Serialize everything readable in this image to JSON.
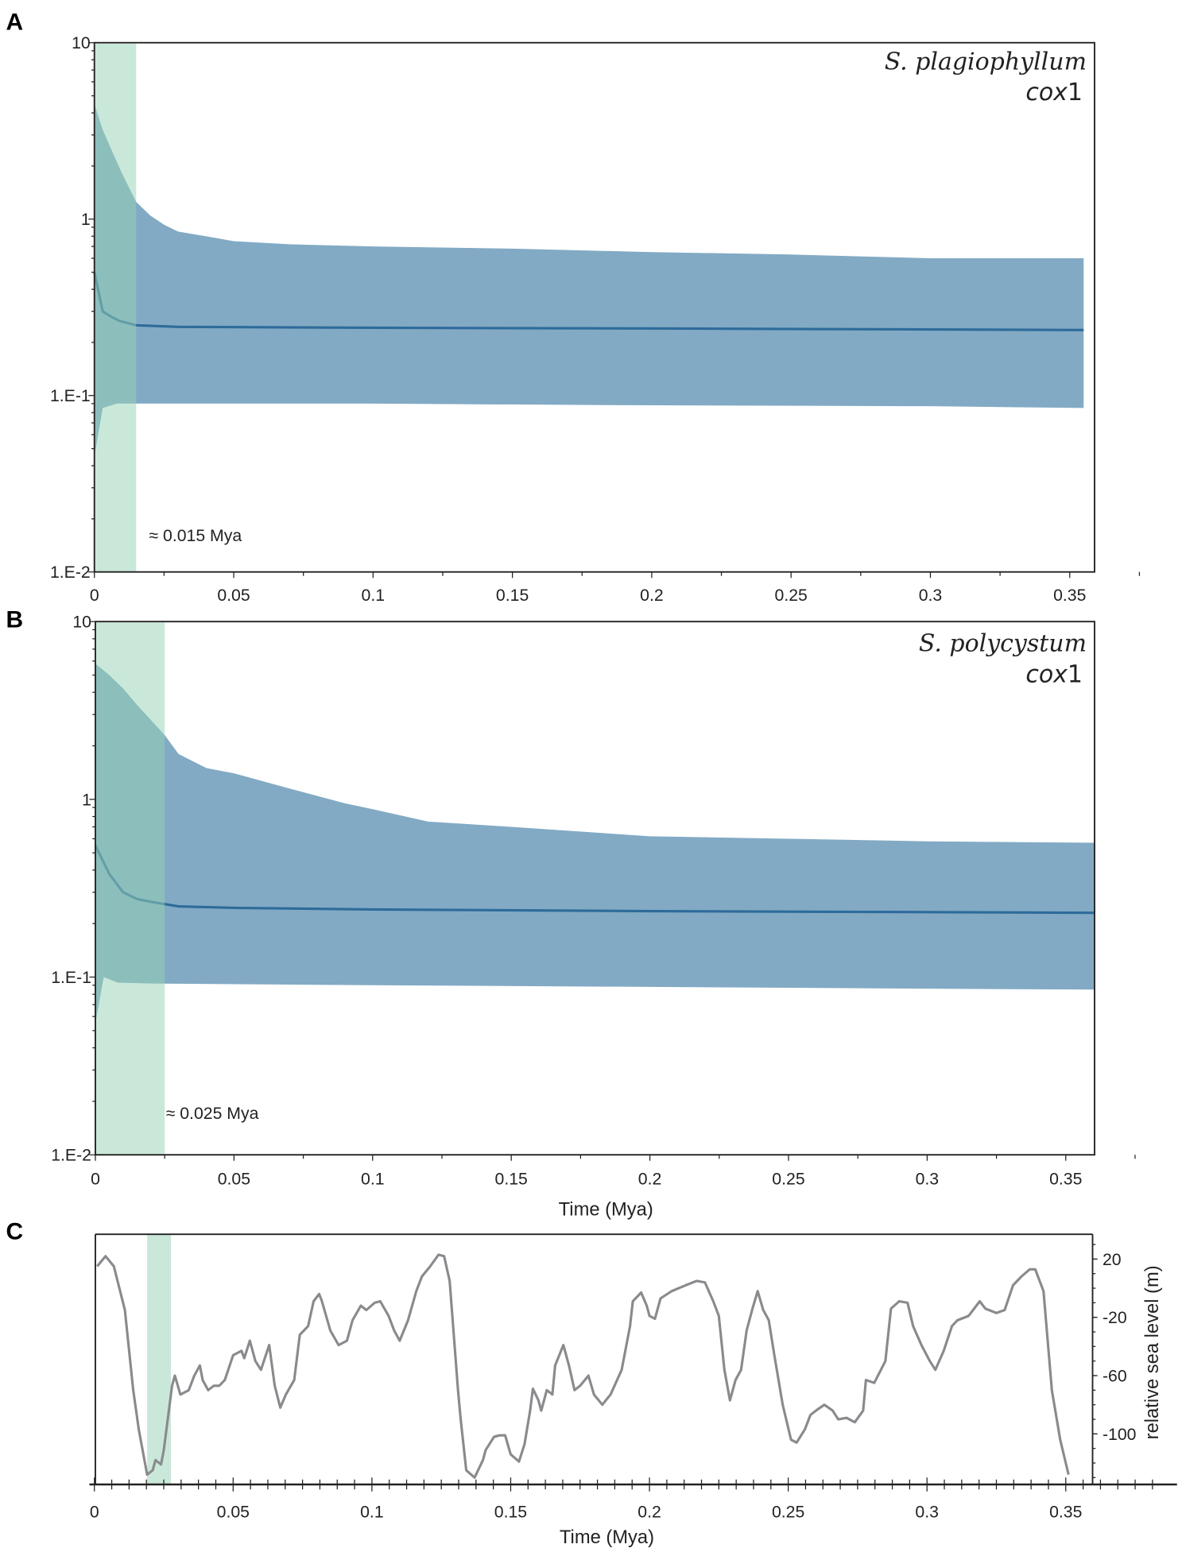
{
  "chart_data": [
    {
      "id": "A",
      "type": "area",
      "panel_label": "A",
      "title_species": "S. plagiophyllum",
      "title_gene": "cox",
      "title_gene_suffix": "1",
      "xlabel": "",
      "ylabel": "",
      "yscale": "log",
      "xlim": [
        0,
        0.3565
      ],
      "ylim": [
        0.01,
        10
      ],
      "x_ticks": [
        "0",
        "0.05",
        "0.1",
        "0.15",
        "0.2",
        "0.25",
        "0.3",
        "0.35"
      ],
      "y_ticks": [
        "10",
        "1",
        "1.E-1",
        "1.E-2"
      ],
      "highlight": {
        "from": 0,
        "to": 0.015,
        "label": "≈ 0.015 Mya",
        "color": "#96d2b4"
      },
      "band_color": "#82aac4",
      "median_color": "#2e6b9a",
      "upper": [
        [
          0,
          4.5
        ],
        [
          0.003,
          3.2
        ],
        [
          0.006,
          2.5
        ],
        [
          0.01,
          1.8
        ],
        [
          0.015,
          1.25
        ],
        [
          0.02,
          1.05
        ],
        [
          0.025,
          0.93
        ],
        [
          0.03,
          0.85
        ],
        [
          0.04,
          0.8
        ],
        [
          0.05,
          0.75
        ],
        [
          0.07,
          0.72
        ],
        [
          0.1,
          0.7
        ],
        [
          0.15,
          0.68
        ],
        [
          0.2,
          0.65
        ],
        [
          0.25,
          0.63
        ],
        [
          0.3,
          0.6
        ],
        [
          0.355,
          0.6
        ]
      ],
      "median": [
        [
          0,
          0.5
        ],
        [
          0.003,
          0.3
        ],
        [
          0.006,
          0.28
        ],
        [
          0.009,
          0.265
        ],
        [
          0.015,
          0.25
        ],
        [
          0.03,
          0.245
        ],
        [
          0.1,
          0.242
        ],
        [
          0.2,
          0.24
        ],
        [
          0.3,
          0.237
        ],
        [
          0.355,
          0.235
        ]
      ],
      "lower": [
        [
          0,
          0.045
        ],
        [
          0.003,
          0.085
        ],
        [
          0.008,
          0.09
        ],
        [
          0.015,
          0.09
        ],
        [
          0.1,
          0.09
        ],
        [
          0.2,
          0.088
        ],
        [
          0.3,
          0.087
        ],
        [
          0.355,
          0.085
        ]
      ]
    },
    {
      "id": "B",
      "type": "area",
      "panel_label": "B",
      "title_species": "S. polycystum",
      "title_gene": "cox",
      "title_gene_suffix": "1",
      "xlabel": "Time (Mya)",
      "ylabel": "",
      "yscale": "log",
      "xlim": [
        0,
        0.3605
      ],
      "ylim": [
        0.01,
        10
      ],
      "x_ticks": [
        "0",
        "0.05",
        "0.1",
        "0.15",
        "0.2",
        "0.25",
        "0.3",
        "0.35"
      ],
      "y_ticks": [
        "10",
        "1",
        "1.E-1",
        "1.E-2"
      ],
      "highlight": {
        "from": 0,
        "to": 0.025,
        "label": "≈ 0.025 Mya",
        "color": "#96d2b4"
      },
      "band_color": "#82aac4",
      "median_color": "#2e6b9a",
      "upper": [
        [
          0,
          5.8
        ],
        [
          0.005,
          5.0
        ],
        [
          0.01,
          4.2
        ],
        [
          0.015,
          3.4
        ],
        [
          0.02,
          2.8
        ],
        [
          0.025,
          2.3
        ],
        [
          0.03,
          1.8
        ],
        [
          0.04,
          1.5
        ],
        [
          0.05,
          1.4
        ],
        [
          0.07,
          1.15
        ],
        [
          0.09,
          0.95
        ],
        [
          0.1,
          0.88
        ],
        [
          0.12,
          0.75
        ],
        [
          0.15,
          0.7
        ],
        [
          0.2,
          0.62
        ],
        [
          0.25,
          0.6
        ],
        [
          0.3,
          0.58
        ],
        [
          0.3605,
          0.57
        ]
      ],
      "median": [
        [
          0,
          0.55
        ],
        [
          0.005,
          0.38
        ],
        [
          0.01,
          0.3
        ],
        [
          0.015,
          0.275
        ],
        [
          0.02,
          0.265
        ],
        [
          0.03,
          0.25
        ],
        [
          0.05,
          0.245
        ],
        [
          0.1,
          0.24
        ],
        [
          0.2,
          0.235
        ],
        [
          0.3,
          0.232
        ],
        [
          0.3605,
          0.23
        ]
      ],
      "lower": [
        [
          0,
          0.055
        ],
        [
          0.003,
          0.1
        ],
        [
          0.008,
          0.093
        ],
        [
          0.02,
          0.092
        ],
        [
          0.1,
          0.09
        ],
        [
          0.2,
          0.088
        ],
        [
          0.3,
          0.086
        ],
        [
          0.3605,
          0.085
        ]
      ]
    },
    {
      "id": "C",
      "type": "line",
      "panel_label": "C",
      "xlabel": "Time (Mya)",
      "ylabel": "relative sea level (m)",
      "xlim": [
        0,
        0.3597
      ],
      "ylim": [
        -135,
        37
      ],
      "x_ticks": [
        "0",
        "0.05",
        "0.1",
        "0.15",
        "0.2",
        "0.25",
        "0.3",
        "0.35"
      ],
      "y_ticks": [
        "20",
        "-20",
        "-60",
        "-100"
      ],
      "highlight": {
        "from": 0.019,
        "to": 0.0276,
        "color": "#96d2b4"
      },
      "line_color": "#8a8a8e",
      "points": [
        [
          0.001,
          15
        ],
        [
          0.004,
          22
        ],
        [
          0.007,
          15
        ],
        [
          0.011,
          -15
        ],
        [
          0.014,
          -70
        ],
        [
          0.016,
          -97
        ],
        [
          0.019,
          -128
        ],
        [
          0.021,
          -125
        ],
        [
          0.022,
          -118
        ],
        [
          0.024,
          -121
        ],
        [
          0.025,
          -111
        ],
        [
          0.028,
          -67
        ],
        [
          0.029,
          -60
        ],
        [
          0.031,
          -73
        ],
        [
          0.034,
          -70
        ],
        [
          0.036,
          -60
        ],
        [
          0.038,
          -53
        ],
        [
          0.039,
          -63
        ],
        [
          0.041,
          -70
        ],
        [
          0.043,
          -67
        ],
        [
          0.045,
          -67
        ],
        [
          0.047,
          -63
        ],
        [
          0.05,
          -46
        ],
        [
          0.053,
          -43
        ],
        [
          0.054,
          -48
        ],
        [
          0.056,
          -36
        ],
        [
          0.058,
          -50
        ],
        [
          0.06,
          -56
        ],
        [
          0.063,
          -39
        ],
        [
          0.065,
          -67
        ],
        [
          0.067,
          -82
        ],
        [
          0.069,
          -73
        ],
        [
          0.072,
          -63
        ],
        [
          0.074,
          -32
        ],
        [
          0.077,
          -26
        ],
        [
          0.079,
          -9
        ],
        [
          0.081,
          -4
        ],
        [
          0.082,
          -9
        ],
        [
          0.085,
          -29
        ],
        [
          0.088,
          -39
        ],
        [
          0.091,
          -36
        ],
        [
          0.093,
          -22
        ],
        [
          0.096,
          -12
        ],
        [
          0.098,
          -15
        ],
        [
          0.101,
          -10
        ],
        [
          0.103,
          -9
        ],
        [
          0.106,
          -19
        ],
        [
          0.108,
          -29
        ],
        [
          0.11,
          -36
        ],
        [
          0.113,
          -22
        ],
        [
          0.116,
          -2
        ],
        [
          0.118,
          8
        ],
        [
          0.121,
          15
        ],
        [
          0.124,
          23
        ],
        [
          0.126,
          22
        ],
        [
          0.128,
          5
        ],
        [
          0.131,
          -70
        ],
        [
          0.132,
          -90
        ],
        [
          0.134,
          -125
        ],
        [
          0.137,
          -130
        ],
        [
          0.14,
          -118
        ],
        [
          0.141,
          -111
        ],
        [
          0.144,
          -102
        ],
        [
          0.146,
          -101
        ],
        [
          0.148,
          -101
        ],
        [
          0.15,
          -114
        ],
        [
          0.153,
          -119
        ],
        [
          0.155,
          -107
        ],
        [
          0.157,
          -84
        ],
        [
          0.158,
          -69
        ],
        [
          0.16,
          -77
        ],
        [
          0.161,
          -84
        ],
        [
          0.163,
          -70
        ],
        [
          0.165,
          -73
        ],
        [
          0.166,
          -53
        ],
        [
          0.169,
          -39
        ],
        [
          0.171,
          -53
        ],
        [
          0.173,
          -70
        ],
        [
          0.175,
          -67
        ],
        [
          0.178,
          -60
        ],
        [
          0.18,
          -73
        ],
        [
          0.183,
          -80
        ],
        [
          0.186,
          -73
        ],
        [
          0.19,
          -56
        ],
        [
          0.193,
          -26
        ],
        [
          0.194,
          -9
        ],
        [
          0.197,
          -3
        ],
        [
          0.199,
          -12
        ],
        [
          0.2,
          -19
        ],
        [
          0.202,
          -21
        ],
        [
          0.204,
          -7
        ],
        [
          0.208,
          -2
        ],
        [
          0.213,
          2
        ],
        [
          0.217,
          5
        ],
        [
          0.22,
          4
        ],
        [
          0.223,
          -9
        ],
        [
          0.225,
          -19
        ],
        [
          0.227,
          -56
        ],
        [
          0.229,
          -77
        ],
        [
          0.231,
          -63
        ],
        [
          0.233,
          -56
        ],
        [
          0.235,
          -29
        ],
        [
          0.237,
          -15
        ],
        [
          0.239,
          -2
        ],
        [
          0.241,
          -15
        ],
        [
          0.243,
          -22
        ],
        [
          0.245,
          -46
        ],
        [
          0.248,
          -80
        ],
        [
          0.251,
          -104
        ],
        [
          0.253,
          -106
        ],
        [
          0.256,
          -97
        ],
        [
          0.258,
          -87
        ],
        [
          0.26,
          -84
        ],
        [
          0.263,
          -80
        ],
        [
          0.266,
          -84
        ],
        [
          0.268,
          -90
        ],
        [
          0.271,
          -89
        ],
        [
          0.274,
          -92
        ],
        [
          0.277,
          -84
        ],
        [
          0.278,
          -63
        ],
        [
          0.281,
          -65
        ],
        [
          0.285,
          -50
        ],
        [
          0.287,
          -14
        ],
        [
          0.29,
          -9
        ],
        [
          0.293,
          -10
        ],
        [
          0.295,
          -26
        ],
        [
          0.298,
          -39
        ],
        [
          0.301,
          -50
        ],
        [
          0.303,
          -56
        ],
        [
          0.306,
          -43
        ],
        [
          0.309,
          -26
        ],
        [
          0.311,
          -22
        ],
        [
          0.315,
          -19
        ],
        [
          0.319,
          -9
        ],
        [
          0.321,
          -14
        ],
        [
          0.325,
          -17
        ],
        [
          0.328,
          -15
        ],
        [
          0.331,
          2
        ],
        [
          0.334,
          8
        ],
        [
          0.337,
          13
        ],
        [
          0.339,
          13
        ],
        [
          0.342,
          -2
        ],
        [
          0.345,
          -70
        ],
        [
          0.348,
          -104
        ],
        [
          0.351,
          -128
        ]
      ]
    }
  ]
}
